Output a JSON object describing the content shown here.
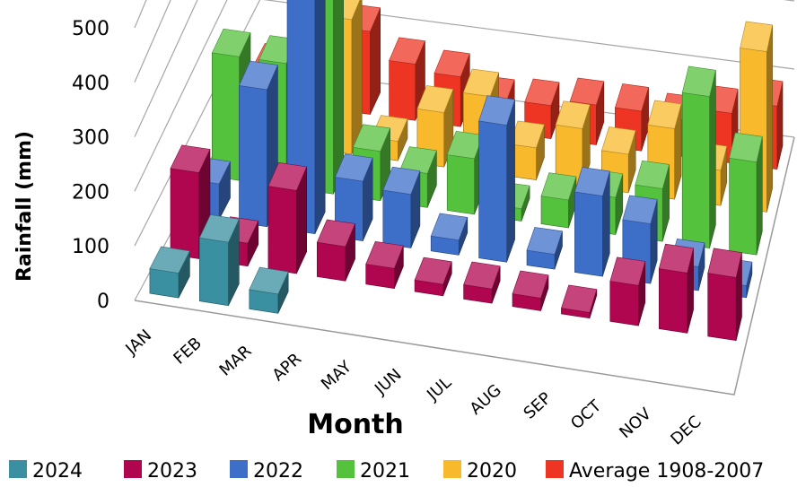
{
  "chart_data": {
    "type": "bar",
    "xlabel": "Month",
    "ylabel": "Rainfall (mm)",
    "ylim": [
      0,
      500
    ],
    "yticks": [
      0,
      100,
      200,
      300,
      400,
      500
    ],
    "grid": true,
    "legend_position": "bottom",
    "categories": [
      "JAN",
      "FEB",
      "MAR",
      "APR",
      "MAY",
      "JUN",
      "JUL",
      "AUG",
      "SEP",
      "OCT",
      "NOV",
      "DEC"
    ],
    "series": [
      {
        "name": "2024",
        "color": "#3A8FA0",
        "values": [
          45,
          115,
          35,
          null,
          null,
          null,
          null,
          null,
          null,
          null,
          null,
          null
        ]
      },
      {
        "name": "2023",
        "color": "#B0064F",
        "values": [
          150,
          40,
          145,
          60,
          35,
          20,
          25,
          22,
          10,
          70,
          105,
          110
        ]
      },
      {
        "name": "2022",
        "color": "#3D6FC9",
        "values": [
          60,
          230,
          440,
          100,
          90,
          25,
          230,
          25,
          135,
          100,
          40,
          20
        ]
      },
      {
        "name": "2021",
        "color": "#55C23E",
        "values": [
          200,
          200,
          480,
          80,
          55,
          90,
          20,
          45,
          60,
          85,
          245,
          150
        ]
      },
      {
        "name": "2020",
        "color": "#F8B92C",
        "values": [
          80,
          110,
          210,
          30,
          85,
          120,
          50,
          90,
          60,
          110,
          55,
          250
        ]
      },
      {
        "name": "Average 1908-2007",
        "color": "#EE3524",
        "values": [
          50,
          75,
          125,
          85,
          75,
          45,
          50,
          60,
          60,
          55,
          75,
          95
        ]
      }
    ]
  }
}
